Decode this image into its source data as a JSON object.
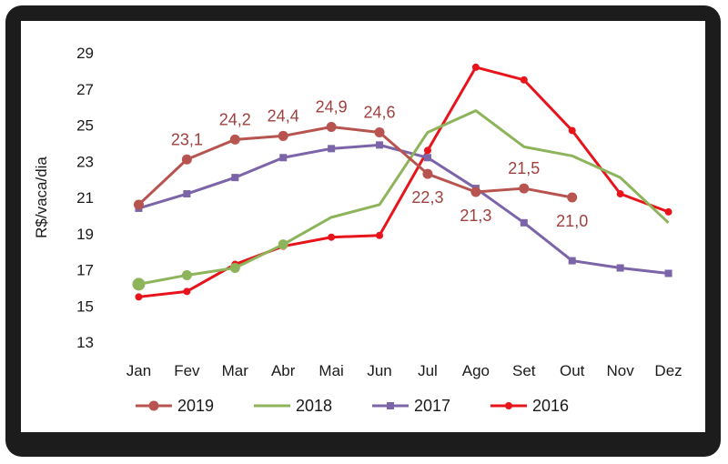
{
  "chart_data": {
    "type": "line",
    "title": "",
    "xlabel": "",
    "ylabel": "R$/vaca/dia",
    "ylim": [
      13,
      29
    ],
    "yticks": [
      13,
      15,
      17,
      19,
      21,
      23,
      25,
      27,
      29
    ],
    "grid": false,
    "legend_position": "bottom",
    "categories": [
      "Jan",
      "Fev",
      "Mar",
      "Abr",
      "Mai",
      "Jun",
      "Jul",
      "Ago",
      "Set",
      "Out",
      "Nov",
      "Dez"
    ],
    "series": [
      {
        "name": "2019",
        "color": "#b85450",
        "marker": "circle",
        "values": [
          20.6,
          23.1,
          24.2,
          24.4,
          24.9,
          24.6,
          22.3,
          21.3,
          21.5,
          21.0,
          null,
          null
        ],
        "labels": [
          "",
          "23,1",
          "24,2",
          "24,4",
          "24,9",
          "24,6",
          "22,3",
          "21,3",
          "21,5",
          "21,0",
          "",
          ""
        ]
      },
      {
        "name": "2018",
        "color": "#8db45a",
        "marker": "line",
        "values": [
          16.2,
          16.7,
          17.1,
          18.4,
          19.9,
          20.6,
          24.6,
          25.8,
          23.8,
          23.3,
          22.1,
          19.6
        ],
        "labels": []
      },
      {
        "name": "2017",
        "color": "#7b64a8",
        "marker": "square",
        "values": [
          20.4,
          21.2,
          22.1,
          23.2,
          23.7,
          23.9,
          23.2,
          21.5,
          19.6,
          17.5,
          17.1,
          16.8
        ],
        "labels": []
      },
      {
        "name": "2016",
        "color": "#e8141c",
        "marker": "dot",
        "values": [
          15.5,
          15.8,
          17.3,
          18.3,
          18.8,
          18.9,
          23.6,
          28.2,
          27.5,
          24.7,
          21.2,
          20.2
        ],
        "labels": []
      }
    ]
  }
}
